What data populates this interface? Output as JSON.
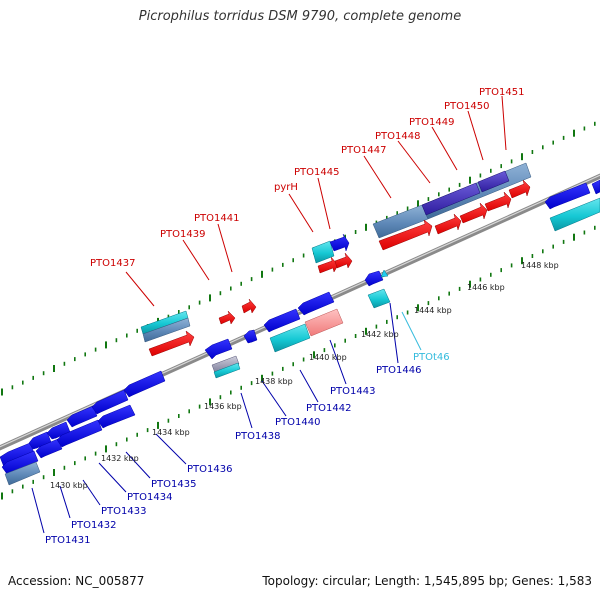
{
  "title": "Picrophilus torridus DSM 9790, complete genome",
  "footer": {
    "accession": "Accession: NC_005877",
    "summary": "Topology: circular; Length: 1,545,895 bp; Genes: 1,583"
  },
  "colors": {
    "forward_gene": "#ff0000",
    "reverse_gene": "#0000ee",
    "forward_label": "#cc0000",
    "reverse_label": "#0000aa",
    "rna_label": "#33bbdd",
    "tick": "#117711",
    "backbone": "#999999"
  },
  "scale_labels": [
    "1430 kbp",
    "1432 kbp",
    "1434 kbp",
    "1436 kbp",
    "1438 kbp",
    "1440 kbp",
    "1442 kbp",
    "1444 kbp",
    "1446 kbp",
    "1448 kbp"
  ],
  "forward_labels": [
    "PTO1437",
    "PTO1439",
    "PTO1441",
    "pyrH",
    "PTO1445",
    "PTO1447",
    "PTO1448",
    "PTO1449",
    "PTO1450",
    "PTO1451"
  ],
  "reverse_labels": [
    "PTO1431",
    "PTO1432",
    "PTO1433",
    "PTO1434",
    "PTO1435",
    "PTO1436",
    "PTO1438",
    "PTO1440",
    "PTO1442",
    "PTO1443",
    "PTO1446"
  ],
  "rna_labels": [
    "PTOt46"
  ]
}
